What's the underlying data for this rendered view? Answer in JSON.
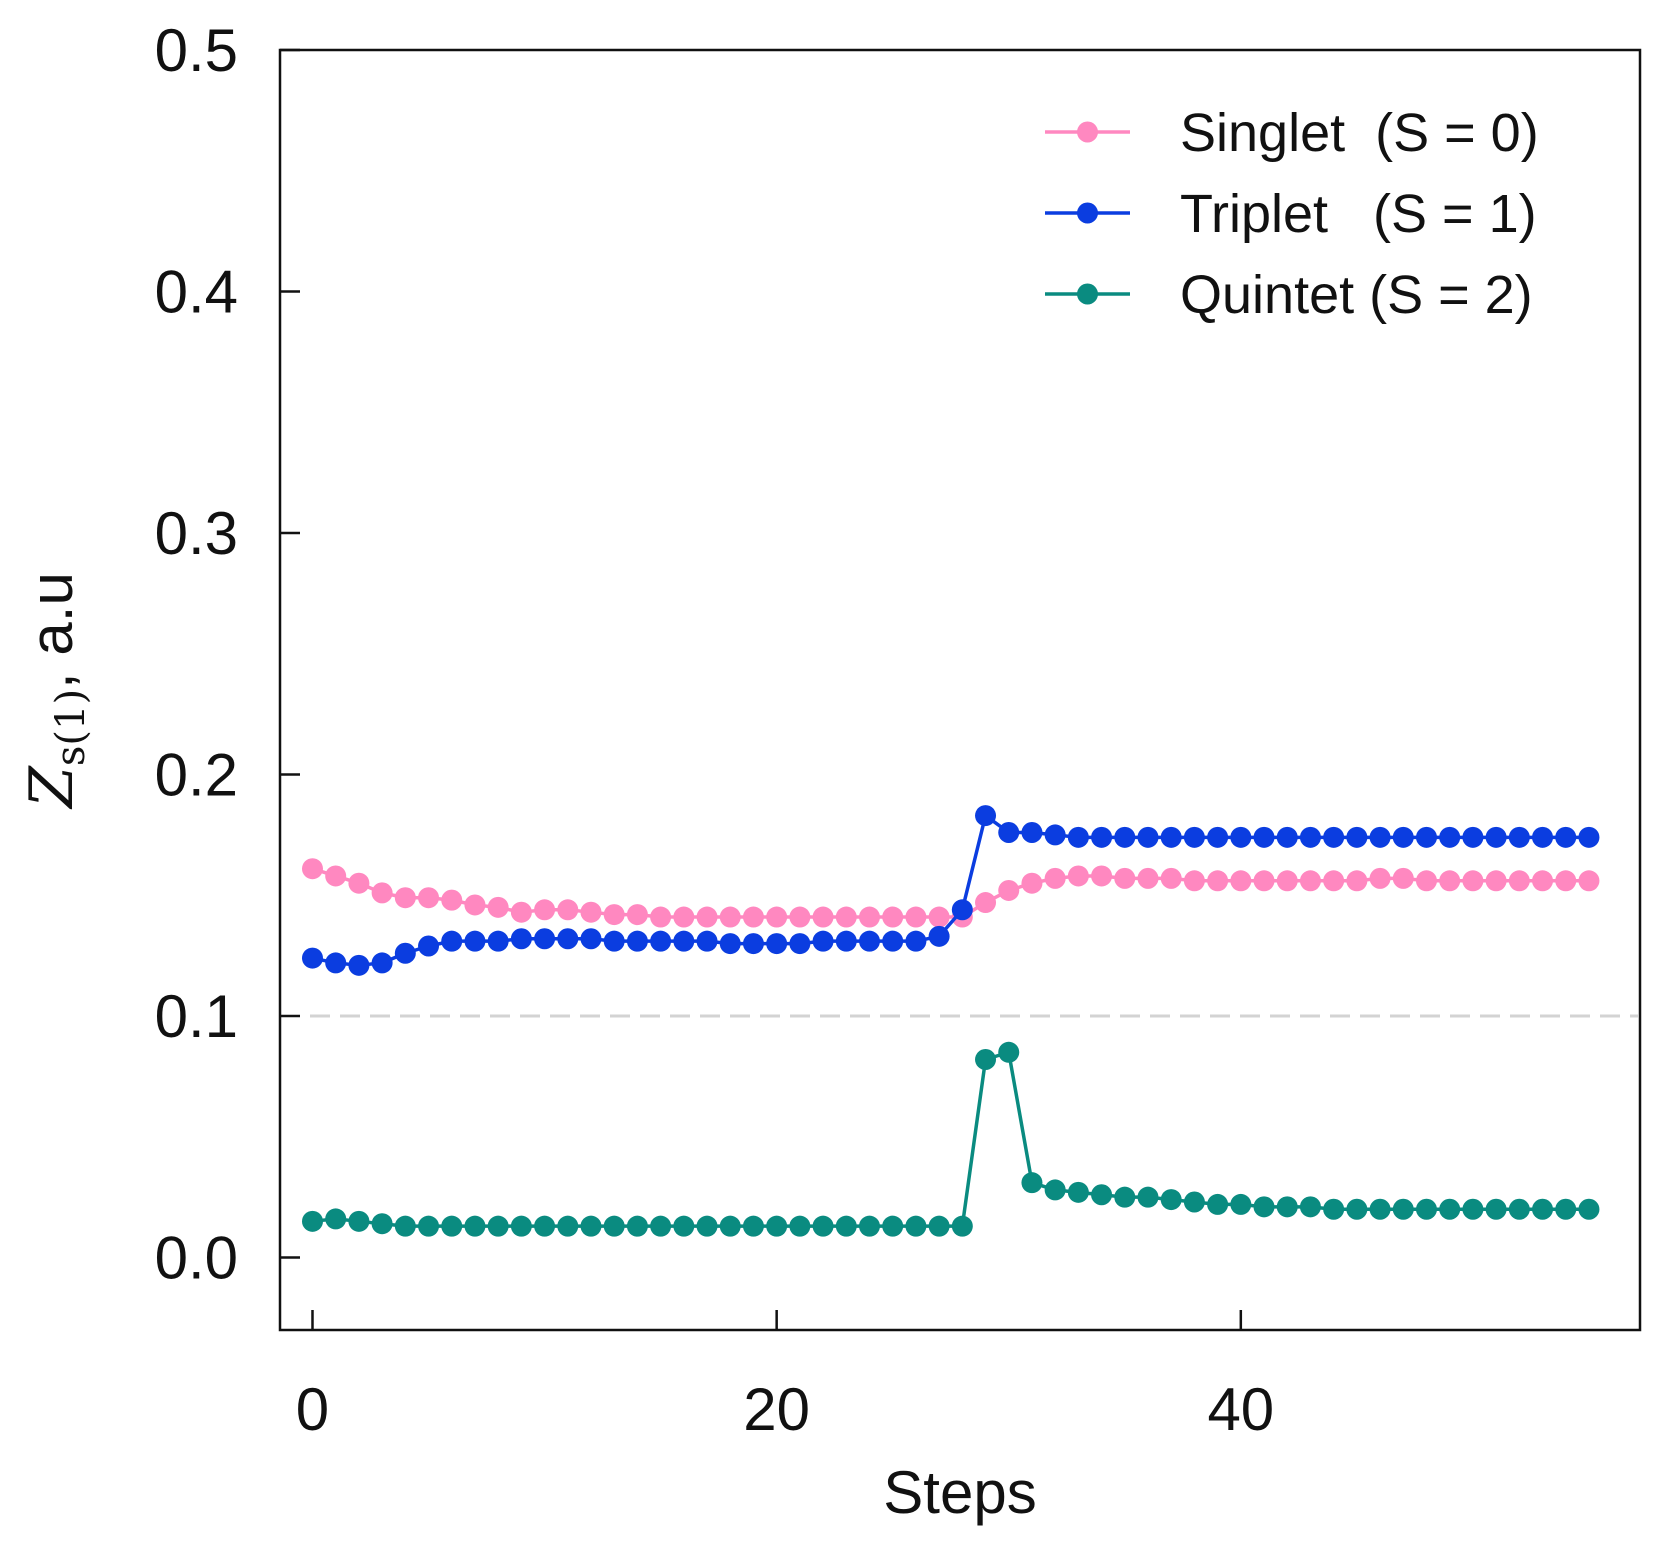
{
  "chart_data": {
    "type": "line",
    "title": "",
    "xlabel": "Steps",
    "ylabel": "Z_s(1), a.u",
    "ylabel_parts": {
      "main": "Z",
      "sub1": "s(1)",
      "rest": ", a.u"
    },
    "xlim": [
      -1.4,
      57.2
    ],
    "ylim": [
      -0.03,
      0.5
    ],
    "xticks": [
      0,
      20,
      40
    ],
    "xtick_labels": [
      "0",
      "20",
      "40"
    ],
    "yticks": [
      0.0,
      0.1,
      0.2,
      0.3,
      0.4,
      0.5
    ],
    "ytick_labels": [
      "0.0",
      "0.1",
      "0.2",
      "0.3",
      "0.4",
      "0.5"
    ],
    "grid": false,
    "reference_line": {
      "y": 0.1,
      "style": "dashed",
      "color": "#d3d3d3"
    },
    "legend": {
      "position": "top-right"
    },
    "x": [
      0,
      1,
      2,
      3,
      4,
      5,
      6,
      7,
      8,
      9,
      10,
      11,
      12,
      13,
      14,
      15,
      16,
      17,
      18,
      19,
      20,
      21,
      22,
      23,
      24,
      25,
      26,
      27,
      28,
      29,
      30,
      31,
      32,
      33,
      34,
      35,
      36,
      37,
      38,
      39,
      40,
      41,
      42,
      43,
      44,
      45,
      46,
      47,
      48,
      49,
      50,
      51,
      52,
      53,
      54,
      55
    ],
    "series": [
      {
        "name": "Singlet  (S = 0)",
        "color": "#ff88c0",
        "values": [
          0.161,
          0.158,
          0.155,
          0.151,
          0.149,
          0.149,
          0.148,
          0.146,
          0.145,
          0.143,
          0.144,
          0.144,
          0.143,
          0.142,
          0.142,
          0.141,
          0.141,
          0.141,
          0.141,
          0.141,
          0.141,
          0.141,
          0.141,
          0.141,
          0.141,
          0.141,
          0.141,
          0.141,
          0.141,
          0.147,
          0.152,
          0.155,
          0.157,
          0.158,
          0.158,
          0.157,
          0.157,
          0.157,
          0.156,
          0.156,
          0.156,
          0.156,
          0.156,
          0.156,
          0.156,
          0.156,
          0.157,
          0.157,
          0.156,
          0.156,
          0.156,
          0.156,
          0.156,
          0.156,
          0.156,
          0.156
        ]
      },
      {
        "name": "Triplet   (S = 1)",
        "color": "#0b3de0",
        "values": [
          0.124,
          0.122,
          0.121,
          0.122,
          0.126,
          0.129,
          0.131,
          0.131,
          0.131,
          0.132,
          0.132,
          0.132,
          0.132,
          0.131,
          0.131,
          0.131,
          0.131,
          0.131,
          0.13,
          0.13,
          0.13,
          0.13,
          0.131,
          0.131,
          0.131,
          0.131,
          0.131,
          0.133,
          0.144,
          0.183,
          0.176,
          0.176,
          0.175,
          0.174,
          0.174,
          0.174,
          0.174,
          0.174,
          0.174,
          0.174,
          0.174,
          0.174,
          0.174,
          0.174,
          0.174,
          0.174,
          0.174,
          0.174,
          0.174,
          0.174,
          0.174,
          0.174,
          0.174,
          0.174,
          0.174,
          0.174
        ]
      },
      {
        "name": "Quintet (S = 2)",
        "color": "#0a8b80",
        "values": [
          0.015,
          0.016,
          0.015,
          0.014,
          0.013,
          0.013,
          0.013,
          0.013,
          0.013,
          0.013,
          0.013,
          0.013,
          0.013,
          0.013,
          0.013,
          0.013,
          0.013,
          0.013,
          0.013,
          0.013,
          0.013,
          0.013,
          0.013,
          0.013,
          0.013,
          0.013,
          0.013,
          0.013,
          0.013,
          0.082,
          0.085,
          0.031,
          0.028,
          0.027,
          0.026,
          0.025,
          0.025,
          0.024,
          0.023,
          0.022,
          0.022,
          0.021,
          0.021,
          0.021,
          0.02,
          0.02,
          0.02,
          0.02,
          0.02,
          0.02,
          0.02,
          0.02,
          0.02,
          0.02,
          0.02,
          0.02
        ]
      }
    ]
  }
}
